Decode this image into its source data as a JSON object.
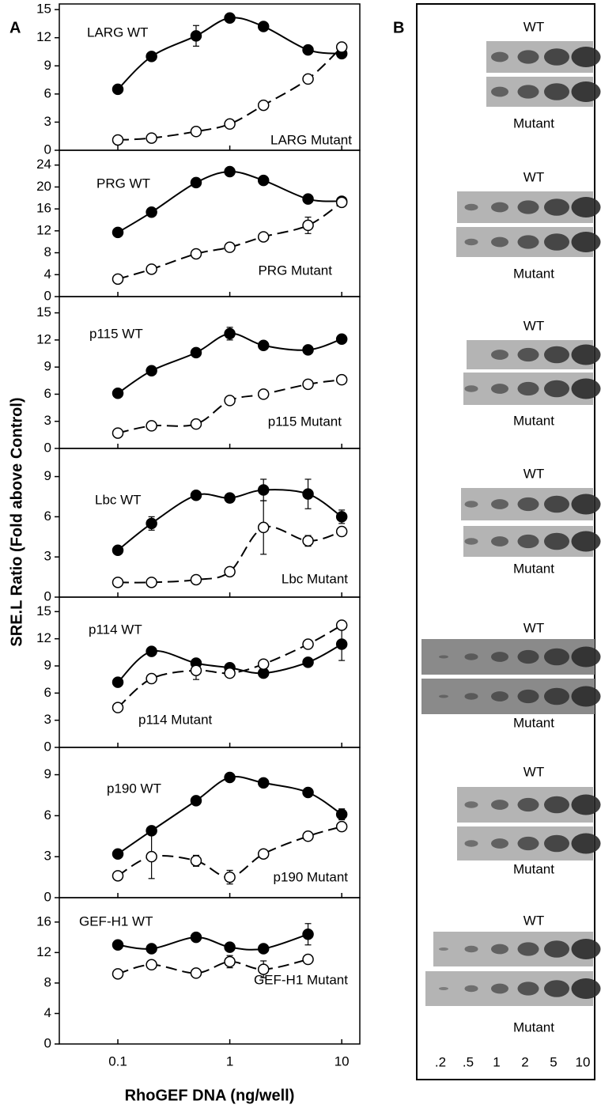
{
  "figure": {
    "panel_labels": [
      "A",
      "B"
    ],
    "ylabel": "SRE.L Ratio (Fold above Control)",
    "xlabel": "RhoGEF DNA (ng/well)"
  },
  "chart_data": [
    {
      "type": "scatter",
      "log_x": true,
      "xlim": [
        0.03,
        14.5
      ],
      "xticks": [
        0.1,
        1,
        10
      ],
      "ylim": [
        0,
        15.6
      ],
      "yticks": [
        0,
        3,
        6,
        9,
        12,
        15
      ],
      "x": [
        0.1,
        0.2,
        0.5,
        1,
        2,
        5,
        10
      ],
      "series": [
        {
          "name": "LARG WT",
          "color": "#000000",
          "marker": "filled",
          "line": "solid",
          "values": [
            6.5,
            10,
            12.2,
            14.1,
            13.2,
            10.7,
            10.3
          ],
          "errors": [
            null,
            null,
            1.1,
            0.4,
            null,
            null,
            null
          ]
        },
        {
          "name": "LARG Mutant",
          "color": "#000000",
          "marker": "open",
          "line": "dashed",
          "values": [
            1.1,
            1.3,
            2.0,
            2.8,
            4.8,
            7.6,
            11.0
          ],
          "errors": [
            null,
            null,
            null,
            null,
            null,
            null,
            null
          ]
        }
      ]
    },
    {
      "type": "scatter",
      "log_x": true,
      "xlim": [
        0.03,
        14.5
      ],
      "xticks": [
        0.1,
        1,
        10
      ],
      "ylim": [
        0,
        26.7
      ],
      "yticks": [
        0,
        4,
        8,
        12,
        16,
        20,
        24
      ],
      "x": [
        0.1,
        0.2,
        0.5,
        1,
        2,
        5,
        10
      ],
      "series": [
        {
          "name": "PRG WT",
          "color": "#000000",
          "marker": "filled",
          "line": "solid",
          "values": [
            11.7,
            15.4,
            20.8,
            22.8,
            21.2,
            17.8,
            17.4
          ],
          "errors": [
            null,
            null,
            0.8,
            null,
            null,
            null,
            null
          ]
        },
        {
          "name": "PRG Mutant",
          "color": "#000000",
          "marker": "open",
          "line": "dashed",
          "values": [
            3.2,
            5.0,
            7.8,
            9.0,
            10.9,
            13.0,
            17.2
          ],
          "errors": [
            null,
            null,
            null,
            null,
            null,
            1.5,
            null
          ]
        }
      ]
    },
    {
      "type": "scatter",
      "log_x": true,
      "xlim": [
        0.03,
        14.5
      ],
      "xticks": [
        0.1,
        1,
        10
      ],
      "ylim": [
        0,
        16.8
      ],
      "yticks": [
        0,
        3,
        6,
        9,
        12,
        15
      ],
      "x": [
        0.1,
        0.2,
        0.5,
        1,
        2,
        5,
        10
      ],
      "series": [
        {
          "name": "p115 WT",
          "color": "#000000",
          "marker": "filled",
          "line": "solid",
          "values": [
            6.1,
            8.6,
            10.6,
            12.7,
            11.4,
            10.9,
            12.1
          ],
          "errors": [
            null,
            null,
            null,
            0.7,
            null,
            null,
            null
          ]
        },
        {
          "name": "p115 Mutant",
          "color": "#000000",
          "marker": "open",
          "line": "dashed",
          "values": [
            1.7,
            2.5,
            2.7,
            5.3,
            6.0,
            7.1,
            7.6
          ],
          "errors": [
            null,
            null,
            null,
            null,
            null,
            null,
            null
          ]
        }
      ]
    },
    {
      "type": "scatter",
      "log_x": true,
      "xlim": [
        0.03,
        14.5
      ],
      "xticks": [
        0.1,
        1,
        10
      ],
      "ylim": [
        0,
        11.1
      ],
      "yticks": [
        0,
        3,
        6,
        9
      ],
      "x": [
        0.1,
        0.2,
        0.5,
        1,
        2,
        5,
        10
      ],
      "series": [
        {
          "name": "Lbc WT",
          "color": "#000000",
          "marker": "filled",
          "line": "solid",
          "values": [
            3.5,
            5.5,
            7.6,
            7.4,
            8.0,
            7.7,
            6.0
          ],
          "errors": [
            null,
            0.5,
            null,
            null,
            0.8,
            1.1,
            0.5
          ]
        },
        {
          "name": "Lbc Mutant",
          "color": "#000000",
          "marker": "open",
          "line": "dashed",
          "values": [
            1.1,
            1.1,
            1.3,
            1.9,
            5.2,
            4.2,
            4.9
          ],
          "errors": [
            null,
            null,
            null,
            null,
            2.0,
            0.4,
            0.3
          ]
        }
      ]
    },
    {
      "type": "scatter",
      "log_x": true,
      "xlim": [
        0.03,
        14.5
      ],
      "xticks": [
        0.1,
        1,
        10
      ],
      "ylim": [
        0,
        16.6
      ],
      "yticks": [
        0,
        3,
        6,
        9,
        12,
        15
      ],
      "x": [
        0.1,
        0.2,
        0.5,
        1,
        2,
        5,
        10
      ],
      "series": [
        {
          "name": "p114 WT",
          "color": "#000000",
          "marker": "filled",
          "line": "solid",
          "values": [
            7.2,
            10.6,
            9.3,
            8.8,
            8.2,
            9.4,
            11.4
          ],
          "errors": [
            null,
            null,
            null,
            null,
            null,
            null,
            1.8
          ]
        },
        {
          "name": "p114 Mutant",
          "color": "#000000",
          "marker": "open",
          "line": "dashed",
          "values": [
            4.4,
            7.6,
            8.5,
            8.2,
            9.2,
            11.4,
            13.5
          ],
          "errors": [
            null,
            null,
            1.0,
            null,
            null,
            null,
            null
          ]
        }
      ]
    },
    {
      "type": "scatter",
      "log_x": true,
      "xlim": [
        0.03,
        14.5
      ],
      "xticks": [
        0.1,
        1,
        10
      ],
      "ylim": [
        0,
        11.0
      ],
      "yticks": [
        0,
        3,
        6,
        9
      ],
      "x": [
        0.1,
        0.2,
        0.5,
        1,
        2,
        5,
        10
      ],
      "series": [
        {
          "name": "p190 WT",
          "color": "#000000",
          "marker": "filled",
          "line": "solid",
          "values": [
            3.2,
            4.9,
            7.1,
            8.8,
            8.4,
            7.7,
            6.1
          ],
          "errors": [
            null,
            null,
            null,
            0.3,
            null,
            null,
            0.4
          ]
        },
        {
          "name": "p190 Mutant",
          "color": "#000000",
          "marker": "open",
          "line": "dashed",
          "values": [
            1.6,
            3.0,
            2.7,
            1.5,
            3.2,
            4.5,
            5.2
          ],
          "errors": [
            null,
            1.6,
            0.4,
            0.5,
            null,
            null,
            null
          ]
        }
      ]
    },
    {
      "type": "scatter",
      "log_x": true,
      "xlim": [
        0.03,
        14.5
      ],
      "xticks": [
        0.1,
        1,
        10
      ],
      "ylim": [
        0,
        19.2
      ],
      "yticks": [
        0,
        4,
        8,
        12,
        16
      ],
      "x": [
        0.1,
        0.2,
        0.5,
        1,
        2,
        5
      ],
      "series": [
        {
          "name": "GEF-H1 WT",
          "color": "#000000",
          "marker": "filled",
          "line": "solid",
          "values": [
            13.0,
            12.5,
            14.0,
            12.7,
            12.5,
            14.4
          ],
          "errors": [
            null,
            null,
            null,
            null,
            null,
            1.4
          ]
        },
        {
          "name": "GEF-H1 Mutant",
          "color": "#000000",
          "marker": "open",
          "line": "dashed",
          "values": [
            9.2,
            10.4,
            9.3,
            10.8,
            9.8,
            11.1
          ],
          "errors": [
            null,
            null,
            null,
            0.8,
            1.1,
            null
          ]
        }
      ]
    }
  ],
  "blots": {
    "panels": [
      {
        "top": "WT",
        "bottom": "Mutant"
      },
      {
        "top": "WT",
        "bottom": "Mutant"
      },
      {
        "top": "WT",
        "bottom": "Mutant"
      },
      {
        "top": "WT",
        "bottom": "Mutant"
      },
      {
        "top": "WT",
        "bottom": "Mutant"
      },
      {
        "top": "WT",
        "bottom": "Mutant"
      },
      {
        "top": "WT",
        "bottom": "Mutant"
      }
    ],
    "lanes": [
      ".2",
      ".5",
      "1",
      "2",
      "5",
      "10"
    ]
  }
}
